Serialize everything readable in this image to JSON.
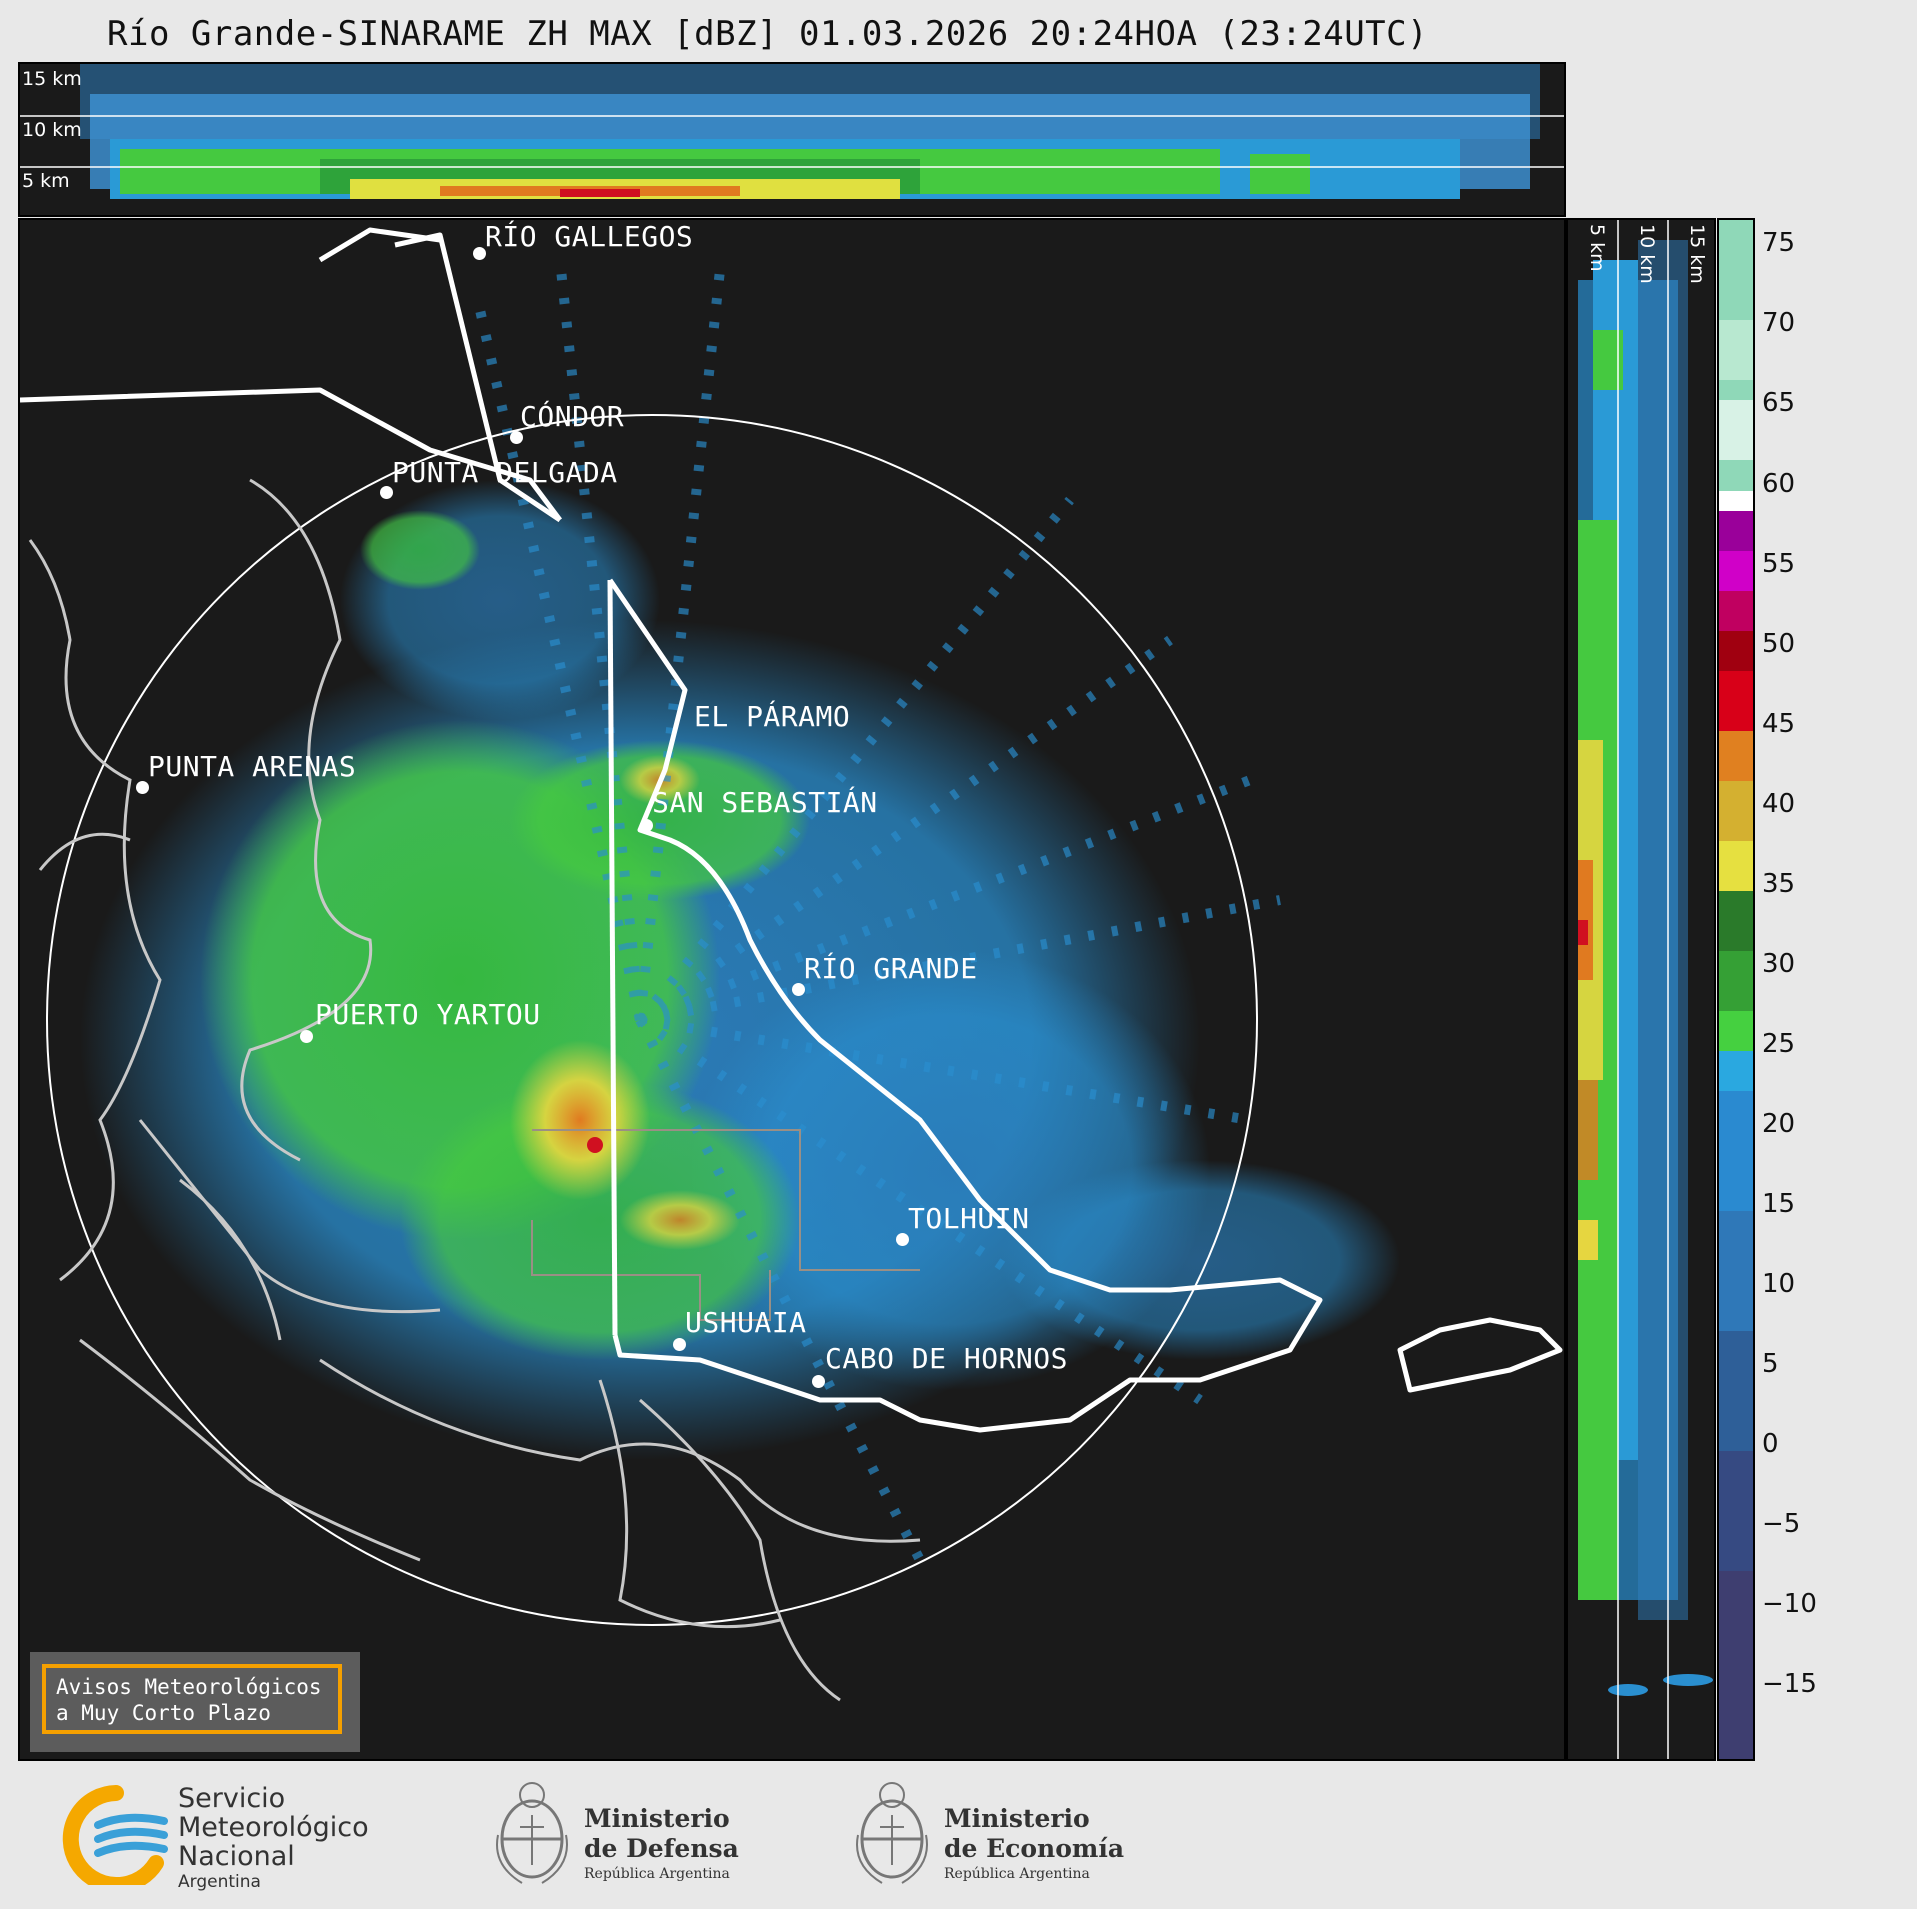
{
  "title": "Río Grande-SINARAME ZH MAX [dBZ] 01.03.2026 20:24HOA (23:24UTC)",
  "top_panel": {
    "altitudes": [
      "15 km",
      "10 km",
      "5 km"
    ]
  },
  "side_panel": {
    "altitudes": [
      "5 km",
      "10 km",
      "15 km"
    ]
  },
  "colorbar": {
    "ticks": [
      "75",
      "70",
      "65",
      "60",
      "55",
      "50",
      "45",
      "40",
      "35",
      "30",
      "25",
      "20",
      "15",
      "10",
      "5",
      "0",
      "−5",
      "−10",
      "−15"
    ]
  },
  "cities": [
    {
      "name": "RÍO GALLEGOS"
    },
    {
      "name": "CÓNDOR"
    },
    {
      "name": "PUNTA DELGADA"
    },
    {
      "name": "EL PÁRAMO"
    },
    {
      "name": "PUNTA ARENAS"
    },
    {
      "name": "SAN SEBASTIÁN"
    },
    {
      "name": "RÍO GRANDE"
    },
    {
      "name": "PUERTO YARTOU"
    },
    {
      "name": "TOLHUIN"
    },
    {
      "name": "USHUAIA"
    },
    {
      "name": "CABO DE HORNOS"
    }
  ],
  "notice": {
    "line1": "Avisos Meteorológicos",
    "line2": "a Muy Corto Plazo"
  },
  "logos": {
    "smn": {
      "line1": "Servicio",
      "line2": "Meteorológico",
      "line3": "Nacional",
      "line4": "Argentina"
    },
    "defensa": {
      "line1": "Ministerio",
      "line2": "de Defensa",
      "line3": "República Argentina"
    },
    "economia": {
      "line1": "Ministerio",
      "line2": "de Economía",
      "line3": "República Argentina"
    }
  },
  "colors": {
    "background": "#e8e8e8",
    "panel": "#1a1a1a",
    "notice_border": "#f5a000"
  }
}
